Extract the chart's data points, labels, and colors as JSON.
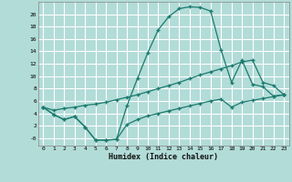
{
  "xlabel": "Humidex (Indice chaleur)",
  "bg_color": "#b2dcd8",
  "grid_color": "#ffffff",
  "line_color": "#1a7a6e",
  "marker": "+",
  "ylim": [
    -1.2,
    22
  ],
  "xlim": [
    -0.5,
    23.5
  ],
  "yticks": [
    0,
    2,
    4,
    6,
    8,
    10,
    12,
    14,
    16,
    18,
    20
  ],
  "xticks": [
    0,
    1,
    2,
    3,
    4,
    5,
    6,
    7,
    8,
    9,
    10,
    11,
    12,
    13,
    14,
    15,
    16,
    17,
    18,
    19,
    20,
    21,
    22,
    23
  ],
  "line1_x": [
    0,
    1,
    2,
    3,
    4,
    5,
    6,
    7,
    8,
    9,
    10,
    11,
    12,
    13,
    14,
    15,
    16,
    17,
    18,
    19,
    20,
    21,
    22,
    23
  ],
  "line1_y": [
    5.0,
    3.8,
    3.0,
    3.5,
    1.8,
    -0.3,
    -0.3,
    -0.2,
    5.2,
    9.6,
    13.8,
    17.5,
    19.6,
    20.9,
    21.2,
    21.1,
    20.5,
    14.2,
    9.0,
    12.6,
    8.7,
    8.3,
    6.8,
    7.0
  ],
  "line2_x": [
    0,
    1,
    2,
    3,
    4,
    5,
    6,
    7,
    8,
    9,
    10,
    11,
    12,
    13,
    14,
    15,
    16,
    17,
    18,
    19,
    20,
    21,
    22,
    23
  ],
  "line2_y": [
    5.0,
    4.5,
    4.8,
    5.0,
    5.3,
    5.5,
    5.8,
    6.2,
    6.6,
    7.0,
    7.5,
    8.0,
    8.5,
    9.0,
    9.6,
    10.2,
    10.7,
    11.2,
    11.7,
    12.3,
    12.6,
    9.0,
    8.5,
    7.0
  ],
  "line3_x": [
    0,
    1,
    2,
    3,
    4,
    5,
    6,
    7,
    8,
    9,
    10,
    11,
    12,
    13,
    14,
    15,
    16,
    17,
    18,
    19,
    20,
    21,
    22,
    23
  ],
  "line3_y": [
    5.0,
    3.8,
    3.0,
    3.5,
    1.8,
    -0.3,
    -0.3,
    -0.2,
    2.2,
    3.0,
    3.6,
    4.0,
    4.4,
    4.8,
    5.2,
    5.6,
    6.0,
    6.3,
    5.0,
    5.8,
    6.1,
    6.4,
    6.7,
    7.0
  ]
}
